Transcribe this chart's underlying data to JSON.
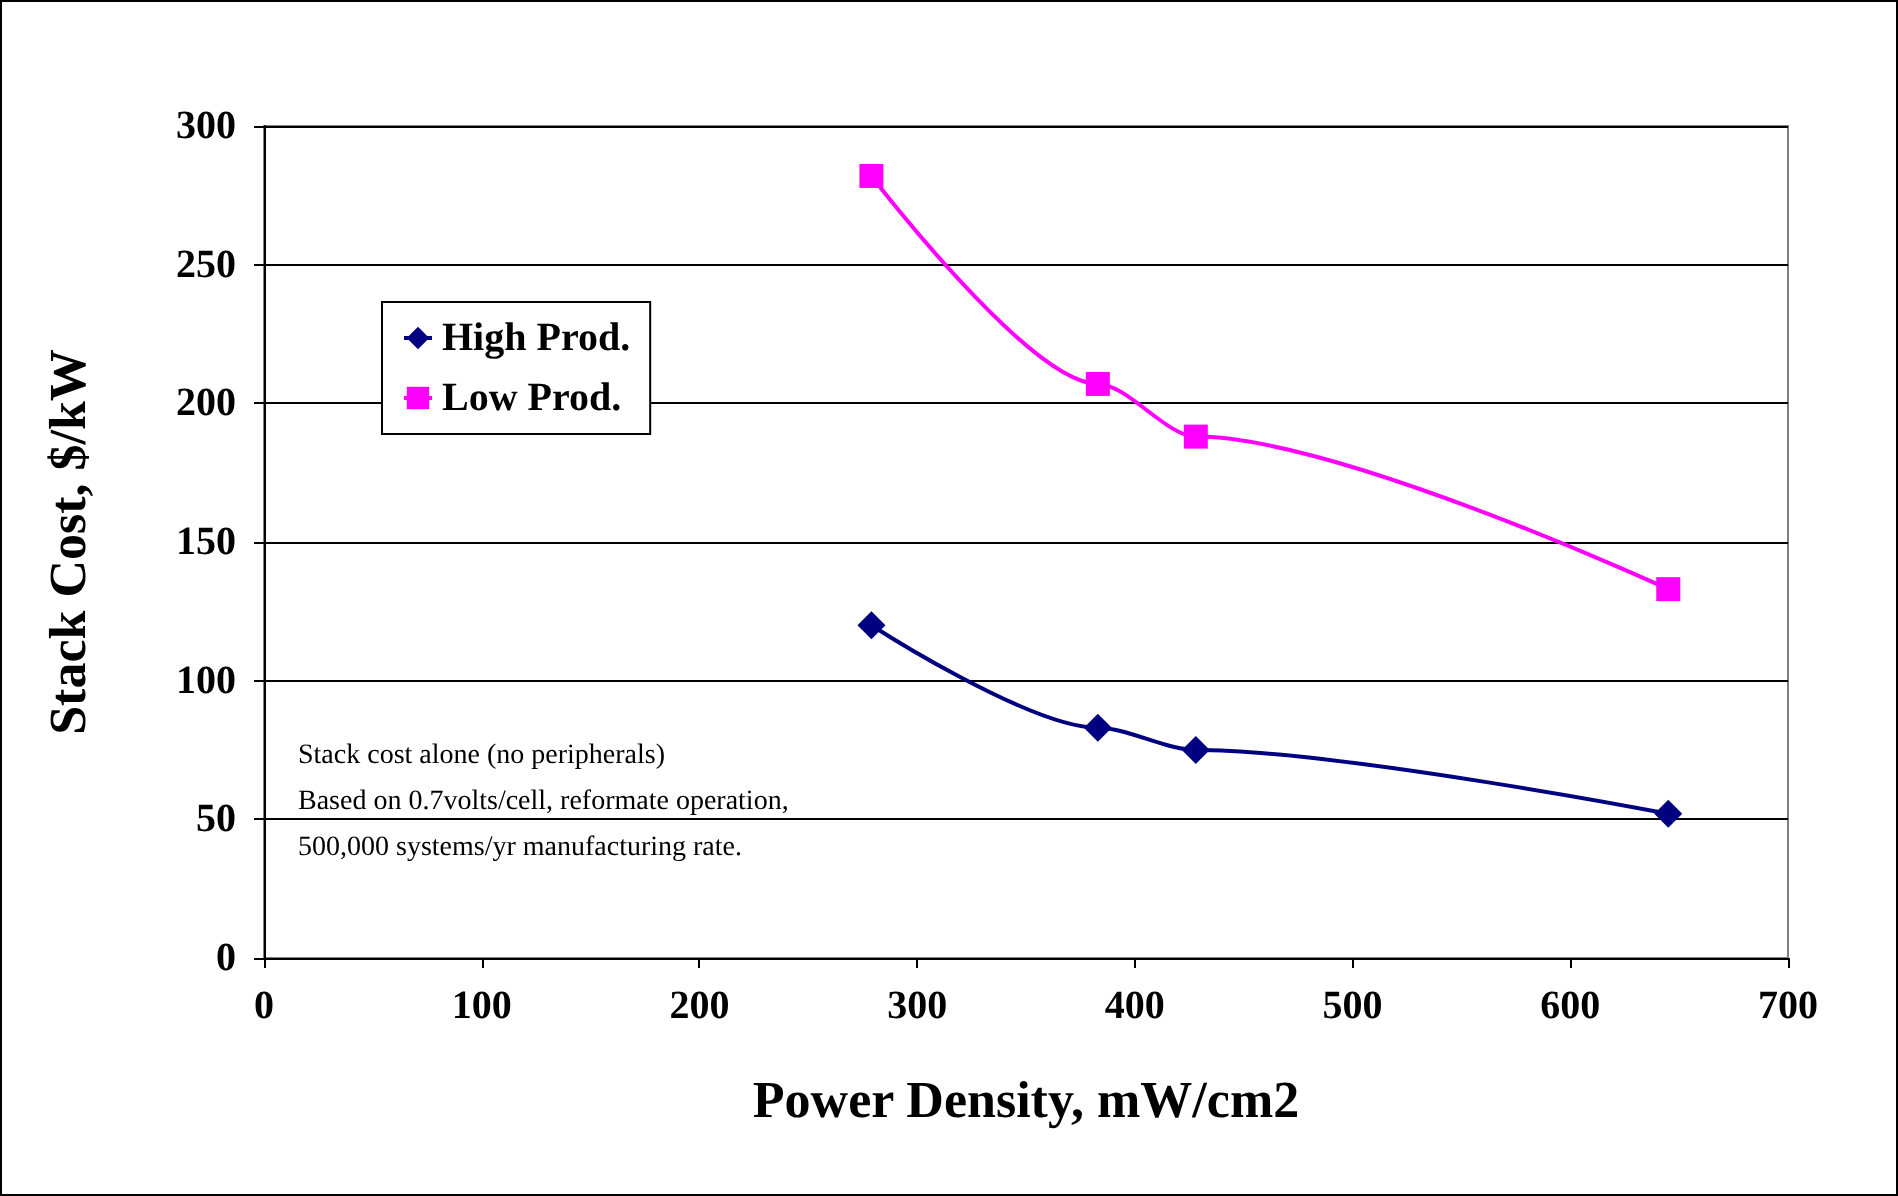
{
  "chart_data": {
    "type": "line",
    "xlabel": "Power Density, mW/cm2",
    "ylabel": "Stack Cost, $/kW",
    "xlim": [
      0,
      700
    ],
    "xticks": [
      0,
      100,
      200,
      300,
      400,
      500,
      600,
      700
    ],
    "ylim": [
      0,
      300
    ],
    "yticks": [
      0,
      50,
      100,
      150,
      200,
      250,
      300
    ],
    "grid": "y",
    "legend": "top left",
    "annotations": [
      "Stack cost alone (no peripherals)",
      "Based on 0.7volts/cell, reformate operation,",
      "500,000 systems/yr manufacturing rate."
    ],
    "series": [
      {
        "name": "High Prod.",
        "color": "#000080",
        "marker": "diamond",
        "x": [
          279,
          383,
          428,
          645
        ],
        "values": [
          120,
          83,
          75,
          52
        ]
      },
      {
        "name": "Low Prod.",
        "color": "#ff00ff",
        "marker": "square",
        "x": [
          279,
          383,
          428,
          645
        ],
        "values": [
          282,
          207,
          188,
          133
        ]
      }
    ]
  }
}
